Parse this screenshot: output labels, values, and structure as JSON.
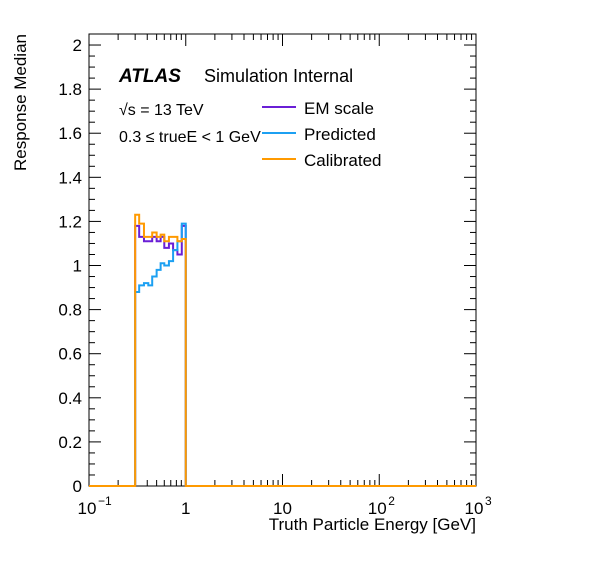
{
  "chart_data": {
    "type": "line",
    "title": "",
    "xlabel": "Truth Particle Energy [GeV]",
    "ylabel": "Response Median",
    "xscale": "log",
    "xlim": [
      0.1,
      1000
    ],
    "ylim": [
      0,
      2.05
    ],
    "x_ticks": [
      {
        "value": 0.1,
        "base": "10",
        "exp": "−1"
      },
      {
        "value": 1,
        "base": "1",
        "exp": ""
      },
      {
        "value": 10,
        "base": "10",
        "exp": ""
      },
      {
        "value": 100,
        "base": "10",
        "exp": "2"
      },
      {
        "value": 1000,
        "base": "10",
        "exp": "3"
      }
    ],
    "y_ticks": [
      {
        "value": 0,
        "label": "0"
      },
      {
        "value": 0.2,
        "label": "0.2"
      },
      {
        "value": 0.4,
        "label": "0.4"
      },
      {
        "value": 0.6,
        "label": "0.6"
      },
      {
        "value": 0.8,
        "label": "0.8"
      },
      {
        "value": 1.0,
        "label": "1"
      },
      {
        "value": 1.2,
        "label": "1.2"
      },
      {
        "value": 1.4,
        "label": "1.4"
      },
      {
        "value": 1.6,
        "label": "1.6"
      },
      {
        "value": 1.8,
        "label": "1.8"
      },
      {
        "value": 2.0,
        "label": "2"
      }
    ],
    "annotations": {
      "atlas": "ATLAS",
      "atlas_suffix": "Simulation Internal",
      "energy": "√s = 13 TeV",
      "selection": "0.3 ≤ trueE < 1 GeV"
    },
    "legend_position": "top-right",
    "bin_edges": [
      0.1,
      0.3,
      0.33,
      0.37,
      0.41,
      0.45,
      0.5,
      0.55,
      0.6,
      0.67,
      0.74,
      0.82,
      0.91,
      1.0,
      1000
    ],
    "series": [
      {
        "name": "EM scale",
        "color": "#6a1fd6",
        "values": [
          0,
          1.18,
          1.13,
          1.11,
          1.11,
          1.13,
          1.11,
          1.13,
          1.08,
          1.1,
          1.07,
          1.05,
          1.18,
          0
        ]
      },
      {
        "name": "Predicted",
        "color": "#1ca0f2",
        "values": [
          0,
          0.88,
          0.91,
          0.92,
          0.91,
          0.95,
          0.98,
          1.01,
          1.0,
          1.02,
          1.07,
          1.11,
          1.19,
          0
        ]
      },
      {
        "name": "Calibrated",
        "color": "#ff9a00",
        "values": [
          0,
          1.23,
          1.19,
          1.13,
          1.13,
          1.15,
          1.13,
          1.14,
          1.11,
          1.13,
          1.13,
          1.11,
          1.12,
          0
        ]
      }
    ]
  }
}
